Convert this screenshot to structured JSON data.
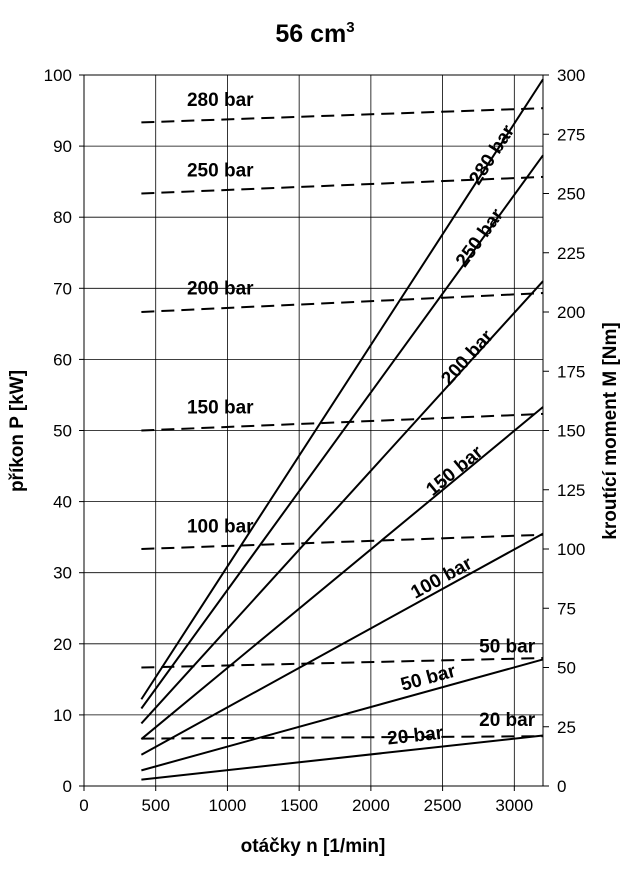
{
  "chart_data": {
    "type": "line",
    "title": "56 cm",
    "title_sup": "3",
    "xlabel": "otáčky n [1/min]",
    "ylabel_left": "příkon P [kW]",
    "ylabel_right": "kroutící moment M [Nm]",
    "xlim": [
      0,
      3200
    ],
    "ylim_left": [
      0,
      100
    ],
    "ylim_right": [
      0,
      300
    ],
    "x_ticks": [
      "0",
      "500",
      "1000",
      "1500",
      "2000",
      "2500",
      "3000"
    ],
    "y_left_ticks": [
      "0",
      "10",
      "20",
      "30",
      "40",
      "50",
      "60",
      "70",
      "80",
      "90",
      "100"
    ],
    "y_right_ticks": [
      "0",
      "25",
      "50",
      "75",
      "100",
      "125",
      "150",
      "175",
      "200",
      "225",
      "250",
      "275",
      "300"
    ],
    "grid": true,
    "power_series": [
      {
        "name": "280 bar",
        "axis": "left",
        "style": "solid",
        "x": [
          400,
          3200
        ],
        "y": [
          12.2,
          99.4
        ]
      },
      {
        "name": "250 bar",
        "axis": "left",
        "style": "solid",
        "x": [
          400,
          3200
        ],
        "y": [
          10.9,
          88.7
        ]
      },
      {
        "name": "200 bar",
        "axis": "left",
        "style": "solid",
        "x": [
          400,
          3200
        ],
        "y": [
          8.8,
          71.0
        ]
      },
      {
        "name": "150 bar",
        "axis": "left",
        "style": "solid",
        "x": [
          400,
          3200
        ],
        "y": [
          6.6,
          53.3
        ]
      },
      {
        "name": "100 bar",
        "axis": "left",
        "style": "solid",
        "x": [
          400,
          3200
        ],
        "y": [
          4.4,
          35.5
        ]
      },
      {
        "name": "50 bar",
        "axis": "left",
        "style": "solid",
        "x": [
          400,
          3200
        ],
        "y": [
          2.2,
          17.8
        ]
      },
      {
        "name": "20 bar",
        "axis": "left",
        "style": "solid",
        "x": [
          400,
          3200
        ],
        "y": [
          0.9,
          7.1
        ]
      }
    ],
    "torque_series": [
      {
        "name": "280 bar",
        "axis": "right",
        "style": "dashed",
        "x": [
          400,
          3200
        ],
        "y": [
          280,
          286
        ]
      },
      {
        "name": "250 bar",
        "axis": "right",
        "style": "dashed",
        "x": [
          400,
          3200
        ],
        "y": [
          250,
          257
        ]
      },
      {
        "name": "200 bar",
        "axis": "right",
        "style": "dashed",
        "x": [
          400,
          3200
        ],
        "y": [
          200,
          208
        ]
      },
      {
        "name": "150 bar",
        "axis": "right",
        "style": "dashed",
        "x": [
          400,
          3200
        ],
        "y": [
          150,
          157
        ]
      },
      {
        "name": "100 bar",
        "axis": "right",
        "style": "dashed",
        "x": [
          400,
          3200
        ],
        "y": [
          100,
          106
        ]
      },
      {
        "name": "50 bar",
        "axis": "right",
        "style": "dashed",
        "x": [
          400,
          3200
        ],
        "y": [
          50,
          54
        ]
      },
      {
        "name": "20 bar",
        "axis": "right",
        "style": "dashed",
        "x": [
          400,
          3200
        ],
        "y": [
          20,
          21
        ]
      }
    ]
  }
}
